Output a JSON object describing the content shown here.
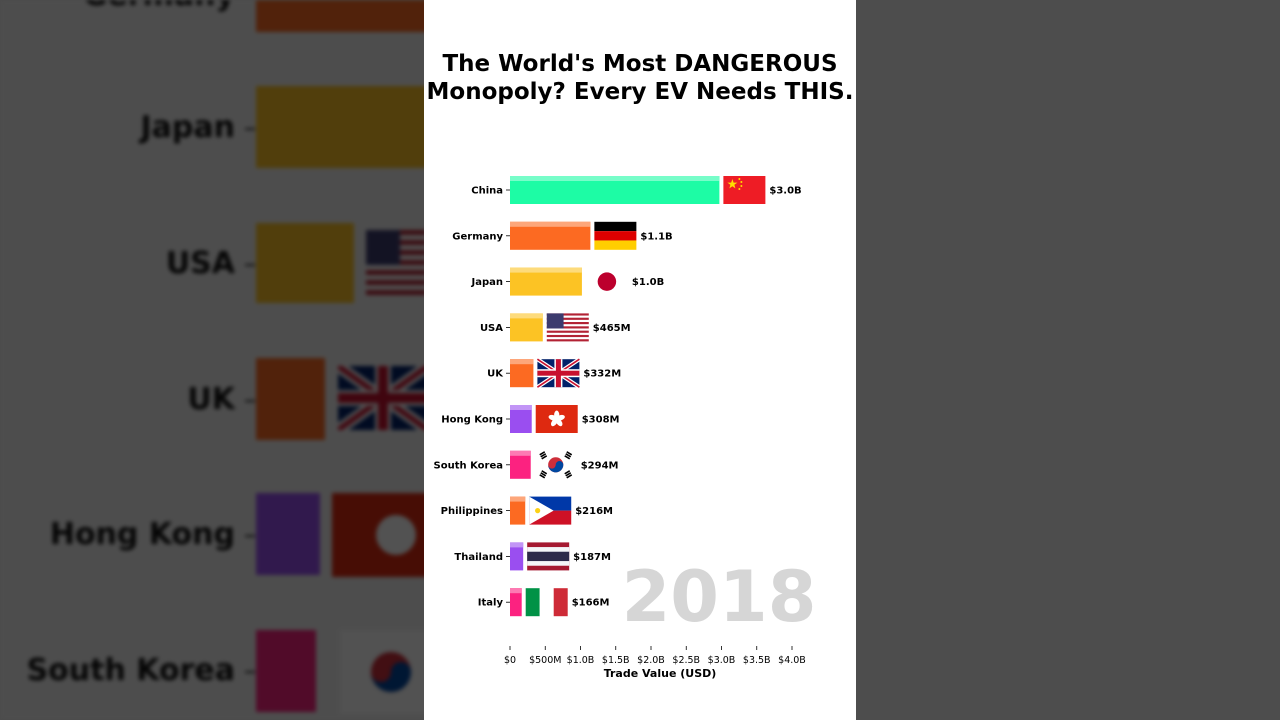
{
  "video": {
    "title": "The World's Most DANGEROUS Monopoly? Every EV Needs THIS.",
    "year": "2018"
  },
  "background_labels": [
    "Germany",
    "Japan",
    "USA",
    "UK",
    "Hong Kong",
    "South Korea"
  ],
  "chart_data": {
    "type": "bar",
    "orientation": "horizontal",
    "title": "The World's Most DANGEROUS Monopoly? Every EV Needs THIS.",
    "xlabel": "Trade Value (USD)",
    "ylabel": "",
    "xlim": [
      0,
      4.0
    ],
    "x_unit": "billion USD",
    "x_ticks": [
      {
        "value": 0,
        "label": "$0"
      },
      {
        "value": 0.5,
        "label": "$500M"
      },
      {
        "value": 1.0,
        "label": "$1.0B"
      },
      {
        "value": 1.5,
        "label": "$1.5B"
      },
      {
        "value": 2.0,
        "label": "$2.0B"
      },
      {
        "value": 2.5,
        "label": "$2.5B"
      },
      {
        "value": 3.0,
        "label": "$3.0B"
      },
      {
        "value": 3.5,
        "label": "$3.5B"
      },
      {
        "value": 4.0,
        "label": "$4.0B"
      }
    ],
    "categories": [
      "China",
      "Germany",
      "Japan",
      "USA",
      "UK",
      "Hong Kong",
      "South Korea",
      "Philippines",
      "Thailand",
      "Italy"
    ],
    "values": [
      2.97,
      1.14,
      1.02,
      0.465,
      0.332,
      0.308,
      0.294,
      0.216,
      0.187,
      0.166
    ],
    "value_labels": [
      "$3.0B",
      "$1.1B",
      "$1.0B",
      "$465M",
      "$332M",
      "$308M",
      "$294M",
      "$216M",
      "$187M",
      "$166M"
    ],
    "colors": [
      "#1dfca5",
      "#fc6a22",
      "#fcc324",
      "#fcc324",
      "#fc6a22",
      "#9a4ef0",
      "#fc2280",
      "#fc6a22",
      "#9a4ef0",
      "#fc2280"
    ],
    "flags": [
      "china-flag",
      "germany-flag",
      "japan-flag",
      "usa-flag",
      "uk-flag",
      "hong-kong-flag",
      "south-korea-flag",
      "philippines-flag",
      "thailand-flag",
      "italy-flag"
    ],
    "legend": "none",
    "grid": false,
    "watermark": "2018"
  }
}
